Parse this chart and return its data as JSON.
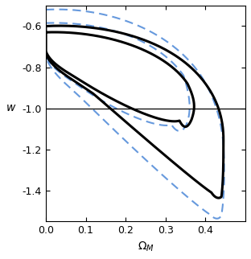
{
  "xlabel": "$\\Omega_M$",
  "ylabel": "$w$",
  "xlim": [
    0.0,
    0.5
  ],
  "ylim": [
    -1.55,
    -0.5
  ],
  "hline_y": -1.0,
  "hline_color": "black",
  "hline_lw": 0.9,
  "black_lw": 2.2,
  "blue_lw": 1.5,
  "blue_color": "#6699dd",
  "black_color": "black",
  "figsize": [
    3.12,
    3.22
  ],
  "dpi": 100,
  "xticks": [
    0.0,
    0.1,
    0.2,
    0.3,
    0.4
  ],
  "yticks": [
    -1.4,
    -1.2,
    -1.0,
    -0.8,
    -0.6
  ]
}
